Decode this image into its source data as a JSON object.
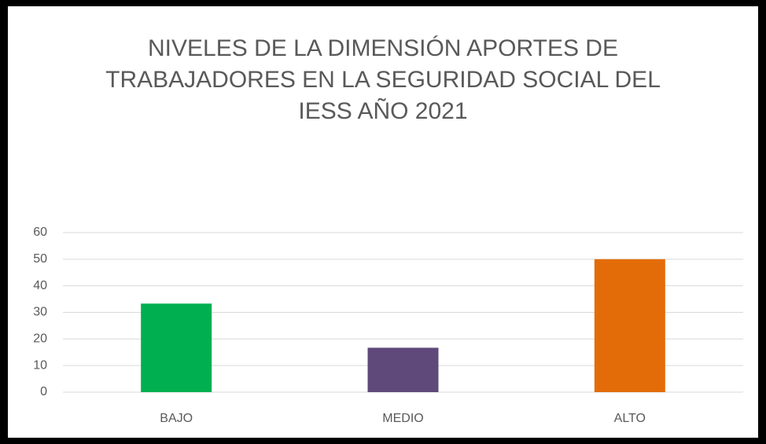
{
  "chart_data": {
    "type": "bar",
    "title": "NIVELES DE LA DIMENSIÓN APORTES DE TRABAJADORES EN LA SEGURIDAD SOCIAL DEL IESS AÑO 2021",
    "categories": [
      "BAJO",
      "MEDIO",
      "ALTO"
    ],
    "values": [
      33.3,
      16.7,
      50
    ],
    "colors": [
      "#00b050",
      "#5f497a",
      "#e36c09"
    ],
    "ylim": [
      0,
      60
    ],
    "yticks": [
      0,
      10,
      20,
      30,
      40,
      50,
      60
    ],
    "grid": true
  }
}
